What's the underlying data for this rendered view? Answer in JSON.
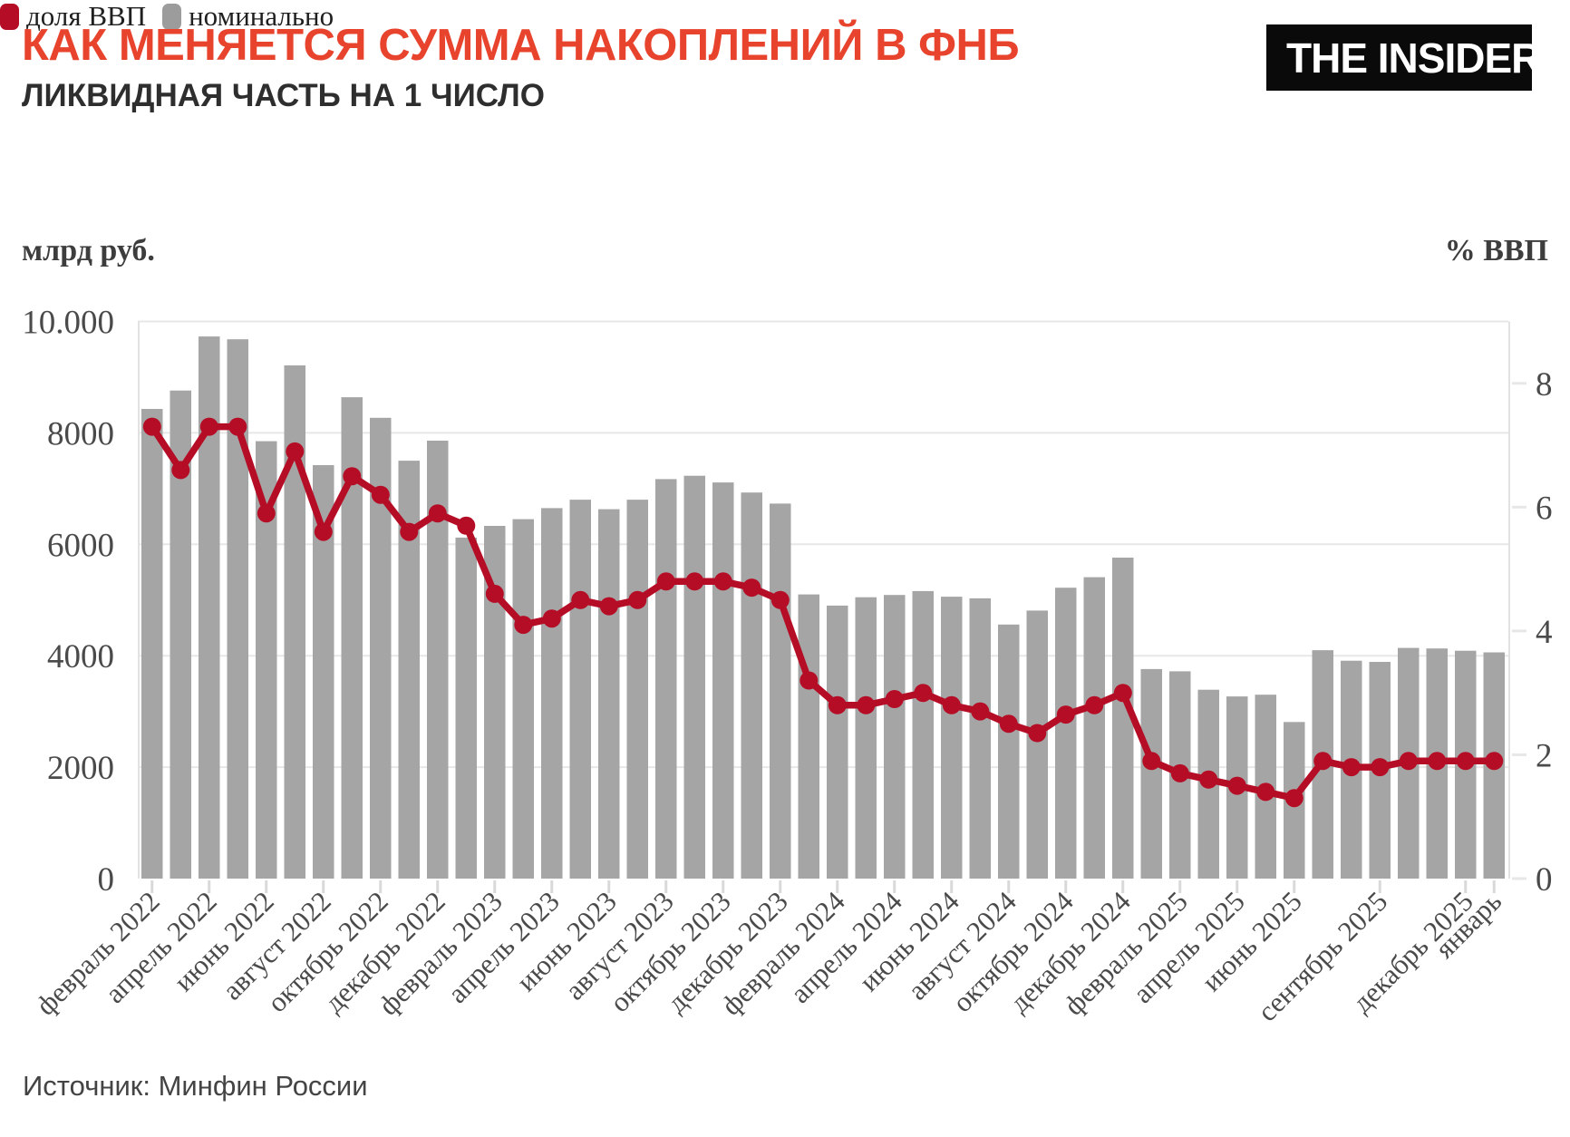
{
  "header": {
    "title": "КАК МЕНЯЕТСЯ СУММА НАКОПЛЕНИЙ В ФНБ",
    "subtitle": "ЛИКВИДНАЯ ЧАСТЬ НА 1 ЧИСЛО",
    "title_color": "#e8432d",
    "logo_text": "THE INSIDER"
  },
  "legend": [
    {
      "label": "доля ВВП",
      "color": "#b50d26"
    },
    {
      "label": "номинально",
      "color": "#9c9c9c"
    }
  ],
  "axes": {
    "left_unit": "млрд руб.",
    "right_unit": "% ВВП",
    "left_ticks": [
      {
        "value": 0,
        "label": "0"
      },
      {
        "value": 2000,
        "label": "2000"
      },
      {
        "value": 4000,
        "label": "4000"
      },
      {
        "value": 6000,
        "label": "6000"
      },
      {
        "value": 8000,
        "label": "8000"
      },
      {
        "value": 10000,
        "label": "10.000"
      }
    ],
    "right_ticks": [
      {
        "value": 0,
        "label": "0"
      },
      {
        "value": 2,
        "label": "2"
      },
      {
        "value": 4,
        "label": "4"
      },
      {
        "value": 6,
        "label": "6"
      },
      {
        "value": 8,
        "label": "8"
      }
    ],
    "left_range": [
      0,
      10000
    ],
    "right_range": [
      0,
      9
    ],
    "grid": true
  },
  "source": "Источник: Минфин России",
  "chart_data": {
    "type": "bar",
    "note": "48 monthly points, Feb 2022 - Jan 2026; bars = nominal bn RUB (left axis), line = share of GDP % (right axis)",
    "series": [
      {
        "name": "номинально",
        "kind": "bar",
        "color": "#a5a5a5",
        "values": [
          8430,
          8760,
          9730,
          9680,
          7850,
          9210,
          7420,
          8640,
          8270,
          7500,
          7860,
          6120,
          6330,
          6450,
          6650,
          6800,
          6630,
          6800,
          7170,
          7230,
          7110,
          6930,
          6730,
          5100,
          4900,
          5050,
          5090,
          5160,
          5060,
          5030,
          4560,
          4810,
          5220,
          5410,
          5760,
          3760,
          3720,
          3390,
          3270,
          3300,
          2810,
          4100,
          3910,
          3890,
          4140,
          4130,
          4090,
          4060
        ]
      },
      {
        "name": "доля ВВП",
        "kind": "line",
        "color": "#b50d26",
        "values": [
          7.3,
          6.6,
          7.3,
          7.3,
          5.9,
          6.9,
          5.6,
          6.5,
          6.2,
          5.6,
          5.9,
          5.7,
          4.6,
          4.1,
          4.2,
          4.5,
          4.4,
          4.5,
          4.8,
          4.8,
          4.8,
          4.7,
          4.5,
          3.2,
          2.8,
          2.8,
          2.9,
          3.0,
          2.8,
          2.7,
          2.5,
          2.35,
          2.65,
          2.8,
          3.0,
          1.9,
          1.7,
          1.6,
          1.5,
          1.4,
          1.3,
          1.9,
          1.8,
          1.8,
          1.9,
          1.9,
          1.9,
          1.9
        ]
      }
    ],
    "x_tick_labels": [
      {
        "index": 0,
        "label": "февраль 2022"
      },
      {
        "index": 2,
        "label": "апрель 2022"
      },
      {
        "index": 4,
        "label": "июнь 2022"
      },
      {
        "index": 6,
        "label": "август 2022"
      },
      {
        "index": 8,
        "label": "октябрь 2022"
      },
      {
        "index": 10,
        "label": "декабрь 2022"
      },
      {
        "index": 12,
        "label": "февраль 2023"
      },
      {
        "index": 14,
        "label": "апрель 2023"
      },
      {
        "index": 16,
        "label": "июнь 2023"
      },
      {
        "index": 18,
        "label": "август 2023"
      },
      {
        "index": 20,
        "label": "октябрь 2023"
      },
      {
        "index": 22,
        "label": "декабрь 2023"
      },
      {
        "index": 24,
        "label": "февраль 2024"
      },
      {
        "index": 26,
        "label": "апрель 2024"
      },
      {
        "index": 28,
        "label": "июнь 2024"
      },
      {
        "index": 30,
        "label": "август 2024"
      },
      {
        "index": 32,
        "label": "октябрь 2024"
      },
      {
        "index": 34,
        "label": "декабрь 2024"
      },
      {
        "index": 36,
        "label": "февраль 2025"
      },
      {
        "index": 38,
        "label": "апрель 2025"
      },
      {
        "index": 40,
        "label": "июнь 2025"
      },
      {
        "index": 43,
        "label": "сентябрь 2025"
      },
      {
        "index": 46,
        "label": "декабрь 2025"
      },
      {
        "index": 47,
        "label": "январь"
      }
    ],
    "colors": {
      "grid": "#e7e7e7",
      "plot_border": "#e2e2e2",
      "tick_dash": "#d9d9d9",
      "axis_text": "#4a4a4a"
    }
  }
}
